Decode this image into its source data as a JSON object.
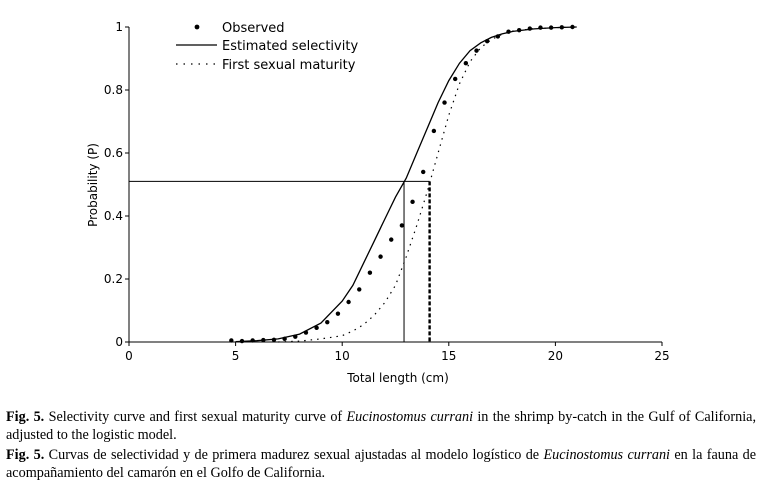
{
  "chart_data": {
    "type": "line",
    "xlabel": "Total length (cm)",
    "ylabel": "Probability (P)",
    "xlim": [
      0,
      25
    ],
    "ylim": [
      0,
      1
    ],
    "x_ticks": [
      "0",
      "5",
      "10",
      "15",
      "20",
      "25"
    ],
    "y_ticks": [
      "0",
      "0.2",
      "0.4",
      "0.6",
      "0.8",
      "1"
    ],
    "grid": false,
    "legend_position": "top-left",
    "series": [
      {
        "name": "Observed",
        "style": "markers",
        "x": [
          4.8,
          5.3,
          5.8,
          6.3,
          6.8,
          7.3,
          7.8,
          8.3,
          8.8,
          9.3,
          9.8,
          10.3,
          10.8,
          11.3,
          11.8,
          12.3,
          12.8,
          13.3,
          13.8,
          14.3,
          14.8,
          15.3,
          15.8,
          16.3,
          16.8,
          17.3,
          17.8,
          18.3,
          18.8,
          19.3,
          19.8,
          20.3,
          20.8
        ],
        "y": [
          0.005,
          0.003,
          0.005,
          0.006,
          0.007,
          0.01,
          0.017,
          0.03,
          0.045,
          0.063,
          0.09,
          0.127,
          0.167,
          0.22,
          0.271,
          0.325,
          0.37,
          0.445,
          0.54,
          0.67,
          0.76,
          0.835,
          0.885,
          0.925,
          0.955,
          0.97,
          0.985,
          0.99,
          0.995,
          0.998,
          0.998,
          0.999,
          1.0
        ]
      },
      {
        "name": "Estimated selectivity",
        "style": "solid",
        "x": [
          5,
          6,
          7,
          8,
          9,
          10,
          10.5,
          11,
          11.5,
          12,
          12.5,
          13,
          13.5,
          14,
          14.5,
          15,
          15.5,
          16,
          16.5,
          17,
          17.5,
          18,
          19,
          20,
          21
        ],
        "y": [
          0.001,
          0.004,
          0.01,
          0.025,
          0.06,
          0.13,
          0.18,
          0.25,
          0.32,
          0.39,
          0.46,
          0.52,
          0.6,
          0.68,
          0.76,
          0.83,
          0.885,
          0.925,
          0.95,
          0.967,
          0.978,
          0.986,
          0.994,
          0.998,
          1.0
        ]
      },
      {
        "name": "First sexual maturity",
        "style": "dotted",
        "x": [
          7,
          8,
          9,
          10,
          10.5,
          11,
          11.5,
          12,
          12.5,
          13,
          13.5,
          14,
          14.5,
          15,
          15.5,
          16,
          16.5,
          17,
          17.5,
          18,
          19,
          20,
          21
        ],
        "y": [
          0.0,
          0.003,
          0.01,
          0.02,
          0.035,
          0.055,
          0.085,
          0.125,
          0.18,
          0.27,
          0.37,
          0.48,
          0.6,
          0.72,
          0.82,
          0.89,
          0.935,
          0.96,
          0.977,
          0.987,
          0.995,
          0.998,
          1.0
        ]
      }
    ],
    "reference_lines": [
      {
        "name": "L50 selectivity",
        "x": 12.9,
        "y": 0.51,
        "style": "solid"
      },
      {
        "name": "L50 first sexual maturity",
        "x": 14.1,
        "y": 0.51,
        "style": "bold-dashed"
      }
    ]
  },
  "caption": {
    "en": {
      "label": "Fig. 5.",
      "text_before": " Selectivity curve and first sexual maturity curve of ",
      "species": "Eucinostomus currani",
      "text_after": " in the shrimp by-catch in the Gulf of California, adjusted to the logistic model."
    },
    "es": {
      "label": "Fig. 5.",
      "text_before": " Curvas de selectividad y de primera madurez sexual ajustadas al modelo logístico de ",
      "species": "Eucinostomus currani",
      "text_after": " en la fauna de acompañamiento del camarón en el Golfo de California."
    }
  }
}
